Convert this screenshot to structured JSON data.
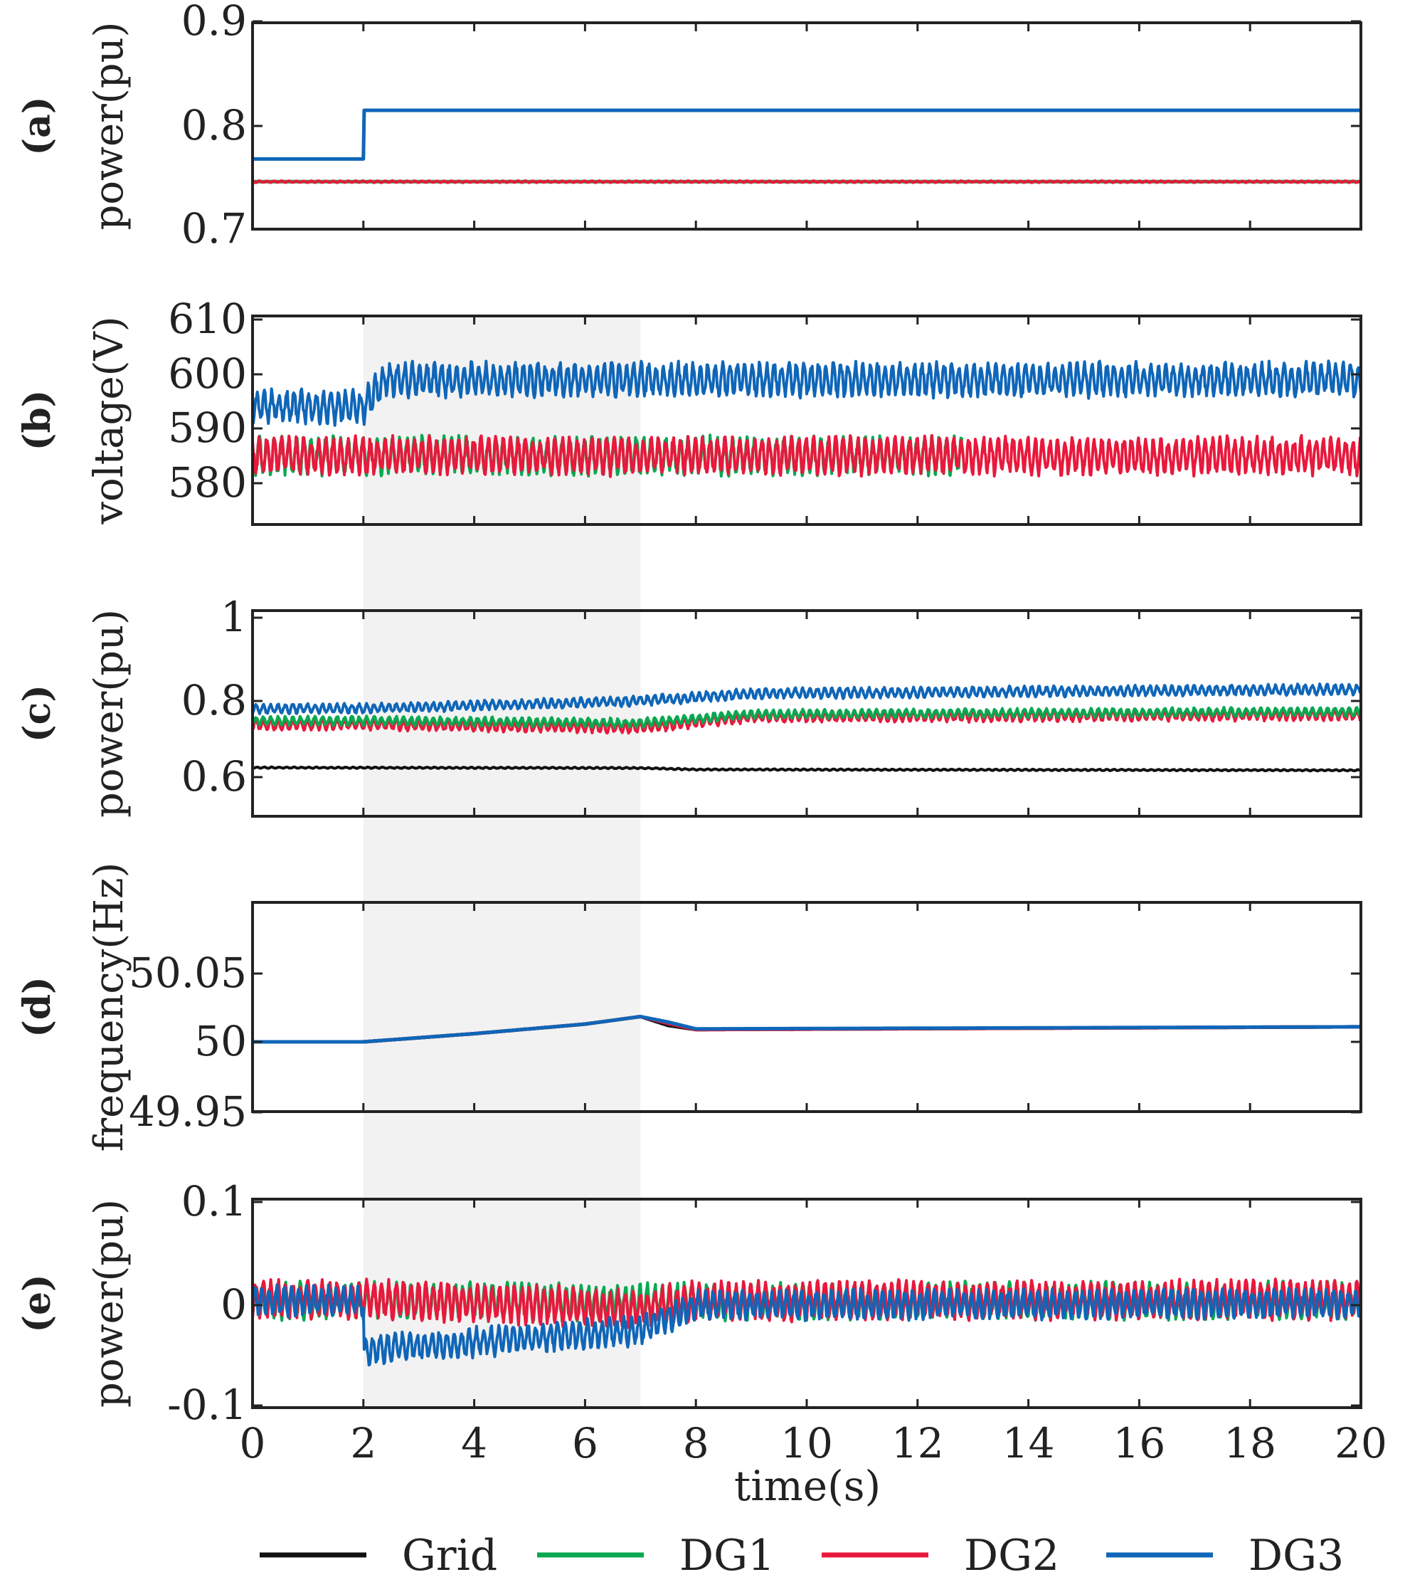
{
  "chart_data": [
    {
      "type": "line",
      "panel_label": "(a)",
      "ylabel": "power(pu)",
      "ylim": [
        0.7,
        0.9
      ],
      "yticks": [
        "0.9",
        "0.8",
        "0.7"
      ],
      "ytick_values": [
        0.9,
        0.8,
        0.7
      ],
      "xlim": [
        0,
        20
      ],
      "series": [
        {
          "name": "DG1",
          "color": "#0aa84f",
          "x": [
            0,
            20
          ],
          "y": [
            0.746,
            0.746
          ],
          "ripple": 0
        },
        {
          "name": "DG2",
          "color": "#e8193c",
          "x": [
            0,
            20
          ],
          "y": [
            0.746,
            0.746
          ],
          "ripple": 0.001
        },
        {
          "name": "DG3",
          "color": "#0f66b8",
          "x": [
            0,
            2,
            2,
            20
          ],
          "y": [
            0.768,
            0.768,
            0.815,
            0.815
          ],
          "ripple": 0
        }
      ]
    },
    {
      "type": "line",
      "panel_label": "(b)",
      "ylabel": "voltage(V)",
      "ylim": [
        574,
        610
      ],
      "yticks": [
        "610",
        "600",
        "590",
        "580"
      ],
      "ytick_values": [
        610,
        600,
        590,
        580
      ],
      "xlim": [
        0,
        20
      ],
      "series": [
        {
          "name": "DG1",
          "color": "#0aa84f",
          "x": [
            0,
            12.8
          ],
          "y": [
            585,
            585
          ],
          "ripple": 3.8
        },
        {
          "name": "DG2",
          "color": "#e8193c",
          "x": [
            0,
            20
          ],
          "y": [
            585,
            585
          ],
          "ripple": 3.8
        },
        {
          "name": "DG3",
          "color": "#0f66b8",
          "x": [
            0,
            2,
            2.4,
            20
          ],
          "y": [
            594,
            594,
            599,
            599
          ],
          "ripple": 3.5
        }
      ]
    },
    {
      "type": "line",
      "panel_label": "(c)",
      "ylabel": "power(pu)",
      "ylim": [
        0.5,
        1.0
      ],
      "yticks": [
        "1",
        "0.8",
        "0.6"
      ],
      "ytick_values": [
        1.0,
        0.8,
        0.6
      ],
      "xlim": [
        0,
        20
      ],
      "series": [
        {
          "name": "Grid",
          "color": "#111111",
          "x": [
            0,
            7,
            8,
            20
          ],
          "y": [
            0.625,
            0.624,
            0.62,
            0.618
          ],
          "ripple": 0.002
        },
        {
          "name": "DG2",
          "color": "#e8193c",
          "x": [
            0,
            2,
            7,
            9,
            20
          ],
          "y": [
            0.738,
            0.738,
            0.73,
            0.758,
            0.764
          ],
          "ripple": 0.016
        },
        {
          "name": "DG1",
          "color": "#0aa84f",
          "x": [
            0,
            2,
            7,
            9,
            20
          ],
          "y": [
            0.748,
            0.748,
            0.742,
            0.765,
            0.772
          ],
          "ripple": 0.013
        },
        {
          "name": "DG3",
          "color": "#0f66b8",
          "x": [
            0,
            2,
            7,
            9,
            20
          ],
          "y": [
            0.78,
            0.78,
            0.8,
            0.818,
            0.828
          ],
          "ripple": 0.014
        }
      ]
    },
    {
      "type": "line",
      "panel_label": "(d)",
      "ylabel": "frequency(Hz)",
      "ylim": [
        49.95,
        50.1
      ],
      "yticks": [
        "50.05",
        "50",
        "49.95"
      ],
      "ytick_values": [
        50.05,
        50.0,
        49.95
      ],
      "xlim": [
        0,
        20
      ],
      "series": [
        {
          "name": "Grid",
          "color": "#111111",
          "x": [
            0,
            2,
            4,
            6,
            7,
            7.5,
            8,
            20
          ],
          "y": [
            50.0,
            50.0,
            50.006,
            50.013,
            50.0185,
            50.012,
            50.009,
            50.011
          ],
          "ripple": 0
        },
        {
          "name": "DG2",
          "color": "#e8193c",
          "x": [
            0,
            2,
            4,
            6,
            7,
            7.5,
            8,
            20
          ],
          "y": [
            50.0,
            50.0,
            50.006,
            50.013,
            50.0185,
            50.0135,
            50.009,
            50.011
          ],
          "ripple": 0
        },
        {
          "name": "DG3",
          "color": "#0f66b8",
          "x": [
            0,
            2,
            4,
            6,
            7,
            7.5,
            8,
            20
          ],
          "y": [
            50.0,
            50.0,
            50.006,
            50.013,
            50.0185,
            50.0145,
            50.0095,
            50.011
          ],
          "ripple": 0
        }
      ]
    },
    {
      "type": "line",
      "panel_label": "(e)",
      "ylabel": "power(pu)",
      "ylim": [
        -0.1,
        0.1
      ],
      "yticks": [
        "0.1",
        "0",
        "-0.1"
      ],
      "ytick_values": [
        0.1,
        0.0,
        -0.1
      ],
      "xlim": [
        0,
        20
      ],
      "xticks": [
        "0",
        "2",
        "4",
        "6",
        "8",
        "10",
        "12",
        "14",
        "16",
        "18",
        "20"
      ],
      "xtick_values": [
        0,
        2,
        4,
        6,
        8,
        10,
        12,
        14,
        16,
        18,
        20
      ],
      "xlabel": "time(s)",
      "series": [
        {
          "name": "DG1",
          "color": "#0aa84f",
          "x": [
            0,
            2,
            7,
            8,
            20
          ],
          "y": [
            0.004,
            0.004,
            0.002,
            0.004,
            0.004
          ],
          "ripple": 0.02
        },
        {
          "name": "DG2",
          "color": "#e8193c",
          "x": [
            0,
            2,
            7,
            8,
            20
          ],
          "y": [
            0.006,
            0.006,
            -0.004,
            0.004,
            0.005
          ],
          "ripple": 0.021
        },
        {
          "name": "DG3",
          "color": "#0f66b8",
          "x": [
            0,
            2,
            2,
            7,
            8,
            20
          ],
          "y": [
            0.004,
            0.004,
            -0.045,
            -0.025,
            0.0,
            0.002
          ],
          "ripple": 0.016
        }
      ]
    }
  ],
  "shaded_interval": {
    "x0": 2,
    "x1": 7,
    "color": "#f2f2f2"
  },
  "legend": [
    {
      "name": "Grid",
      "color": "#111111"
    },
    {
      "name": "DG1",
      "color": "#0aa84f"
    },
    {
      "name": "DG2",
      "color": "#e8193c"
    },
    {
      "name": "DG3",
      "color": "#0f66b8"
    }
  ]
}
